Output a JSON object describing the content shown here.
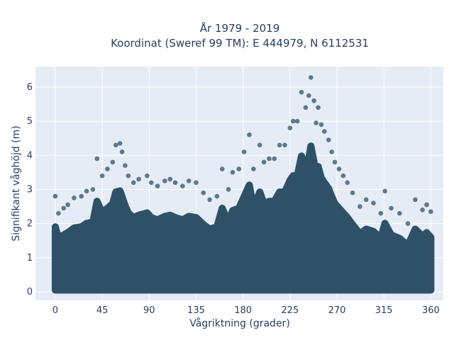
{
  "chart_data": {
    "type": "scatter",
    "title": "År 1979 - 2019",
    "subtitle": "Koordinat (Sweref 99 TM): E 444979, N 6112531",
    "xlabel": "Vågriktning (grader)",
    "ylabel": "Signifikant våghöjd (m)",
    "xlim": [
      -19,
      372
    ],
    "ylim": [
      -0.25,
      6.6
    ],
    "x_ticks": [
      0,
      45,
      90,
      135,
      180,
      225,
      270,
      315,
      360
    ],
    "y_ticks": [
      0,
      1,
      2,
      3,
      4,
      5,
      6
    ],
    "grid": true,
    "marker_color": "#2f5168",
    "background_color": "#e5ecf6",
    "series": [
      {
        "x": [
          0,
          3,
          8,
          12,
          18,
          25,
          30,
          36,
          40,
          45,
          50,
          55,
          58,
          62,
          64,
          67,
          70,
          75,
          80,
          88,
          92,
          98,
          105,
          110,
          115,
          122,
          128,
          135,
          142,
          148,
          155,
          160,
          166,
          170,
          176,
          181,
          186,
          190,
          196,
          200,
          205,
          210,
          215,
          220,
          225,
          228,
          232,
          236,
          240,
          243,
          245,
          248,
          250,
          252,
          255,
          258,
          262,
          265,
          268,
          272,
          276,
          280,
          285,
          292,
          298,
          305,
          312,
          316,
          322,
          330,
          338,
          345,
          352,
          356,
          360
        ],
        "y": [
          2.8,
          2.3,
          2.45,
          2.55,
          2.75,
          2.8,
          2.95,
          3.0,
          3.9,
          3.4,
          3.6,
          3.8,
          4.3,
          4.35,
          4.1,
          3.7,
          3.4,
          3.2,
          3.3,
          3.4,
          3.2,
          3.1,
          3.25,
          3.3,
          3.2,
          3.1,
          3.25,
          3.2,
          2.9,
          2.7,
          2.8,
          3.6,
          3.0,
          3.5,
          3.6,
          4.1,
          4.6,
          3.6,
          4.3,
          3.8,
          3.9,
          3.9,
          4.3,
          4.3,
          4.8,
          5.0,
          5.0,
          5.85,
          5.4,
          5.75,
          6.28,
          5.6,
          4.95,
          5.4,
          4.9,
          4.7,
          4.45,
          4.1,
          3.8,
          3.6,
          3.4,
          3.2,
          2.9,
          2.5,
          2.7,
          2.6,
          2.3,
          2.95,
          2.45,
          2.3,
          2.0,
          2.7,
          2.4,
          2.55,
          2.35
        ]
      }
    ]
  }
}
